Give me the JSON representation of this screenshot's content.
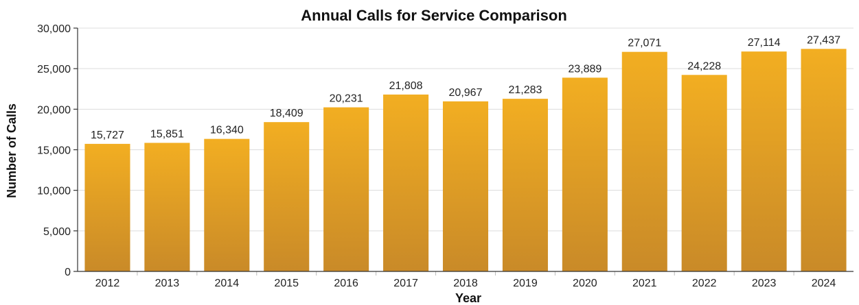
{
  "chart_data": {
    "type": "bar",
    "title": "Annual Calls for Service Comparison",
    "xlabel": "Year",
    "ylabel": "Number of Calls",
    "categories": [
      "2012",
      "2013",
      "2014",
      "2015",
      "2016",
      "2017",
      "2018",
      "2019",
      "2020",
      "2021",
      "2022",
      "2023",
      "2024"
    ],
    "values": [
      15727,
      15851,
      16340,
      18409,
      20231,
      21808,
      20967,
      21283,
      23889,
      27071,
      24228,
      27114,
      27437
    ],
    "value_labels": [
      "15,727",
      "15,851",
      "16,340",
      "18,409",
      "20,231",
      "21,808",
      "20,967",
      "21,283",
      "23,889",
      "27,071",
      "24,228",
      "27,114",
      "27,437"
    ],
    "ylim": [
      0,
      30000
    ],
    "yticks": [
      0,
      5000,
      10000,
      15000,
      20000,
      25000,
      30000
    ],
    "ytick_labels": [
      "0",
      "5,000",
      "10,000",
      "15,000",
      "20,000",
      "25,000",
      "30,000"
    ],
    "grid": true,
    "legend": "none",
    "colors": {
      "bar_top": "#F2AE22",
      "bar_bottom": "#C98A28"
    }
  }
}
